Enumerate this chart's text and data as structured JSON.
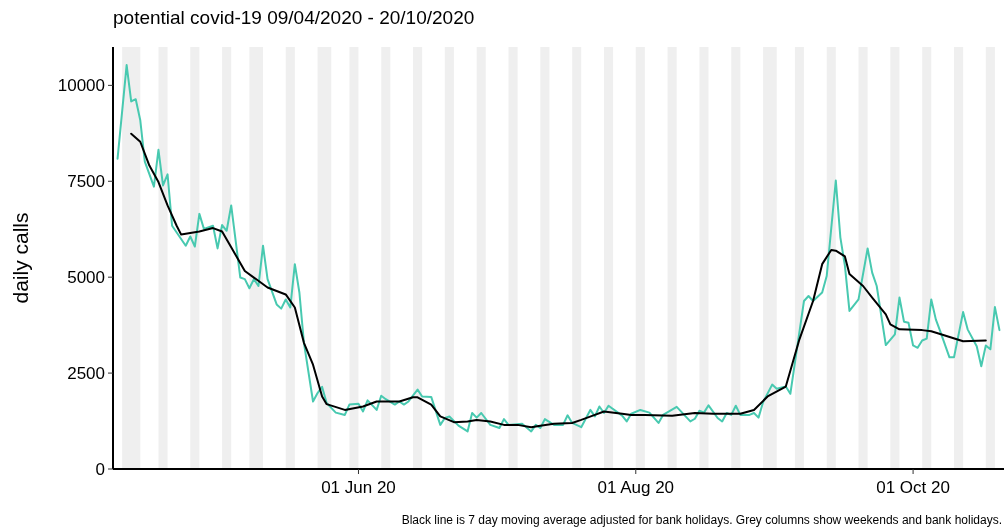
{
  "chart_data": {
    "type": "line",
    "title": "potential covid-19 09/04/2020 - 20/10/2020",
    "ylabel": "daily calls",
    "annotations": [
      "Black line is 7 day moving average adjusted for bank holidays. Grey columns show weekends and bank holidays."
    ],
    "xlim": [
      "2020-04-08",
      "2020-10-21"
    ],
    "ylim": [
      0,
      11000
    ],
    "xticks": [
      {
        "value": "2020-06-01",
        "label": "01 Jun 20"
      },
      {
        "value": "2020-08-01",
        "label": "01 Aug 20"
      },
      {
        "value": "2020-10-01",
        "label": "01 Oct 20"
      }
    ],
    "yticks": [
      0,
      2500,
      5000,
      7500,
      10000
    ],
    "marker": "none",
    "line_style": "solid",
    "bands": [
      {
        "axis": "x",
        "from": "2020-04-10",
        "to": "2020-04-14",
        "color": "#ebebeb"
      },
      {
        "axis": "x",
        "from": "2020-04-18",
        "to": "2020-04-20",
        "color": "#ebebeb"
      },
      {
        "axis": "x",
        "from": "2020-04-25",
        "to": "2020-04-27",
        "color": "#ebebeb"
      },
      {
        "axis": "x",
        "from": "2020-05-02",
        "to": "2020-05-04",
        "color": "#ebebeb"
      },
      {
        "axis": "x",
        "from": "2020-05-08",
        "to": "2020-05-11",
        "color": "#ebebeb"
      },
      {
        "axis": "x",
        "from": "2020-05-16",
        "to": "2020-05-18",
        "color": "#ebebeb"
      },
      {
        "axis": "x",
        "from": "2020-05-23",
        "to": "2020-05-26",
        "color": "#ebebeb"
      },
      {
        "axis": "x",
        "from": "2020-05-30",
        "to": "2020-06-01",
        "color": "#ebebeb"
      },
      {
        "axis": "x",
        "from": "2020-06-06",
        "to": "2020-06-08",
        "color": "#ebebeb"
      },
      {
        "axis": "x",
        "from": "2020-06-13",
        "to": "2020-06-15",
        "color": "#ebebeb"
      },
      {
        "axis": "x",
        "from": "2020-06-20",
        "to": "2020-06-22",
        "color": "#ebebeb"
      },
      {
        "axis": "x",
        "from": "2020-06-27",
        "to": "2020-06-29",
        "color": "#ebebeb"
      },
      {
        "axis": "x",
        "from": "2020-07-04",
        "to": "2020-07-06",
        "color": "#ebebeb"
      },
      {
        "axis": "x",
        "from": "2020-07-11",
        "to": "2020-07-13",
        "color": "#ebebeb"
      },
      {
        "axis": "x",
        "from": "2020-07-18",
        "to": "2020-07-20",
        "color": "#ebebeb"
      },
      {
        "axis": "x",
        "from": "2020-07-25",
        "to": "2020-07-27",
        "color": "#ebebeb"
      },
      {
        "axis": "x",
        "from": "2020-08-01",
        "to": "2020-08-03",
        "color": "#ebebeb"
      },
      {
        "axis": "x",
        "from": "2020-08-08",
        "to": "2020-08-10",
        "color": "#ebebeb"
      },
      {
        "axis": "x",
        "from": "2020-08-15",
        "to": "2020-08-17",
        "color": "#ebebeb"
      },
      {
        "axis": "x",
        "from": "2020-08-22",
        "to": "2020-08-24",
        "color": "#ebebeb"
      },
      {
        "axis": "x",
        "from": "2020-08-29",
        "to": "2020-09-01",
        "color": "#ebebeb"
      },
      {
        "axis": "x",
        "from": "2020-09-05",
        "to": "2020-09-07",
        "color": "#ebebeb"
      },
      {
        "axis": "x",
        "from": "2020-09-12",
        "to": "2020-09-14",
        "color": "#ebebeb"
      },
      {
        "axis": "x",
        "from": "2020-09-19",
        "to": "2020-09-21",
        "color": "#ebebeb"
      },
      {
        "axis": "x",
        "from": "2020-09-26",
        "to": "2020-09-28",
        "color": "#ebebeb"
      },
      {
        "axis": "x",
        "from": "2020-10-03",
        "to": "2020-10-05",
        "color": "#ebebeb"
      },
      {
        "axis": "x",
        "from": "2020-10-10",
        "to": "2020-10-12",
        "color": "#ebebeb"
      },
      {
        "axis": "x",
        "from": "2020-10-17",
        "to": "2020-10-19",
        "color": "#ebebeb"
      }
    ],
    "series": [
      {
        "color": "#48c9b0",
        "x": [
          "2020-04-09",
          "2020-04-11",
          "2020-04-12",
          "2020-04-13",
          "2020-04-14",
          "2020-04-15",
          "2020-04-17",
          "2020-04-18",
          "2020-04-19",
          "2020-04-20",
          "2020-04-21",
          "2020-04-24",
          "2020-04-25",
          "2020-04-26",
          "2020-04-27",
          "2020-04-28",
          "2020-04-30",
          "2020-05-01",
          "2020-05-02",
          "2020-05-03",
          "2020-05-04",
          "2020-05-06",
          "2020-05-07",
          "2020-05-08",
          "2020-05-09",
          "2020-05-10",
          "2020-05-11",
          "2020-05-12",
          "2020-05-14",
          "2020-05-15",
          "2020-05-16",
          "2020-05-17",
          "2020-05-18",
          "2020-05-19",
          "2020-05-20",
          "2020-05-22",
          "2020-05-23",
          "2020-05-24",
          "2020-05-25",
          "2020-05-27",
          "2020-05-29",
          "2020-05-30",
          "2020-06-01",
          "2020-06-02",
          "2020-06-03",
          "2020-06-05",
          "2020-06-06",
          "2020-06-07",
          "2020-06-09",
          "2020-06-10",
          "2020-06-11",
          "2020-06-12",
          "2020-06-14",
          "2020-06-15",
          "2020-06-17",
          "2020-06-19",
          "2020-06-20",
          "2020-06-21",
          "2020-06-23",
          "2020-06-25",
          "2020-06-26",
          "2020-06-27",
          "2020-06-28",
          "2020-06-30",
          "2020-07-02",
          "2020-07-03",
          "2020-07-04",
          "2020-07-07",
          "2020-07-09",
          "2020-07-10",
          "2020-07-11",
          "2020-07-12",
          "2020-07-14",
          "2020-07-16",
          "2020-07-17",
          "2020-07-18",
          "2020-07-20",
          "2020-07-22",
          "2020-07-23",
          "2020-07-24",
          "2020-07-25",
          "2020-07-26",
          "2020-07-29",
          "2020-07-30",
          "2020-07-31",
          "2020-08-02",
          "2020-08-04",
          "2020-08-06",
          "2020-08-07",
          "2020-08-10",
          "2020-08-13",
          "2020-08-14",
          "2020-08-15",
          "2020-08-16",
          "2020-08-17",
          "2020-08-19",
          "2020-08-20",
          "2020-08-21",
          "2020-08-22",
          "2020-08-23",
          "2020-08-24",
          "2020-08-26",
          "2020-08-27",
          "2020-08-28",
          "2020-08-29",
          "2020-08-31",
          "2020-09-01",
          "2020-09-03",
          "2020-09-04",
          "2020-09-07",
          "2020-09-08",
          "2020-09-09",
          "2020-09-11",
          "2020-09-12",
          "2020-09-14",
          "2020-09-15",
          "2020-09-16",
          "2020-09-17",
          "2020-09-19",
          "2020-09-21",
          "2020-09-22",
          "2020-09-23",
          "2020-09-25",
          "2020-09-27",
          "2020-09-28",
          "2020-09-29",
          "2020-09-30",
          "2020-10-01",
          "2020-10-02",
          "2020-10-03",
          "2020-10-04",
          "2020-10-05",
          "2020-10-06",
          "2020-10-07",
          "2020-10-09",
          "2020-10-10",
          "2020-10-12",
          "2020-10-13",
          "2020-10-15",
          "2020-10-16",
          "2020-10-17",
          "2020-10-18",
          "2020-10-19",
          "2020-10-20"
        ],
        "values": [
          8090,
          10530,
          9580,
          9640,
          9090,
          8010,
          7360,
          8320,
          7390,
          7680,
          6340,
          5820,
          6060,
          5800,
          6650,
          6260,
          6340,
          5750,
          6360,
          6210,
          6870,
          4990,
          4950,
          4710,
          4950,
          4770,
          5820,
          4950,
          4290,
          4180,
          4420,
          4210,
          5340,
          4600,
          3290,
          1760,
          1980,
          2140,
          1720,
          1470,
          1410,
          1680,
          1700,
          1500,
          1790,
          1540,
          1910,
          1820,
          1680,
          1760,
          1680,
          1760,
          2070,
          1890,
          1880,
          1150,
          1330,
          1370,
          1130,
          980,
          1460,
          1340,
          1460,
          1150,
          1070,
          1300,
          1150,
          1180,
          980,
          1150,
          1070,
          1300,
          1150,
          1150,
          1400,
          1200,
          1090,
          1540,
          1370,
          1630,
          1460,
          1650,
          1390,
          1240,
          1440,
          1540,
          1470,
          1200,
          1410,
          1620,
          1240,
          1310,
          1520,
          1470,
          1660,
          1330,
          1240,
          1460,
          1410,
          1650,
          1410,
          1410,
          1460,
          1340,
          1740,
          2200,
          2090,
          2150,
          1960,
          4380,
          4510,
          4380,
          4600,
          5030,
          7520,
          6040,
          5300,
          4120,
          4420,
          5750,
          5120,
          4770,
          3230,
          3510,
          4470,
          3840,
          3810,
          3220,
          3160,
          3350,
          3400,
          4420,
          3900,
          3580,
          2910,
          2910,
          4090,
          3640,
          3200,
          2680,
          3220,
          3120,
          4220,
          3620
        ]
      },
      {
        "color": "#000000",
        "x": [
          "2020-04-12",
          "2020-04-14",
          "2020-04-16",
          "2020-04-18",
          "2020-04-20",
          "2020-04-22",
          "2020-04-23",
          "2020-04-27",
          "2020-04-30",
          "2020-05-02",
          "2020-05-04",
          "2020-05-07",
          "2020-05-09",
          "2020-05-12",
          "2020-05-16",
          "2020-05-18",
          "2020-05-20",
          "2020-05-22",
          "2020-05-24",
          "2020-05-25",
          "2020-05-29",
          "2020-06-02",
          "2020-06-05",
          "2020-06-10",
          "2020-06-13",
          "2020-06-14",
          "2020-06-17",
          "2020-06-19",
          "2020-06-22",
          "2020-06-25",
          "2020-06-27",
          "2020-06-30",
          "2020-07-03",
          "2020-07-06",
          "2020-07-09",
          "2020-07-11",
          "2020-07-14",
          "2020-07-18",
          "2020-07-20",
          "2020-07-23",
          "2020-07-25",
          "2020-07-29",
          "2020-07-31",
          "2020-08-03",
          "2020-08-09",
          "2020-08-14",
          "2020-08-18",
          "2020-08-24",
          "2020-08-27",
          "2020-08-30",
          "2020-09-03",
          "2020-09-06",
          "2020-09-09",
          "2020-09-11",
          "2020-09-13",
          "2020-09-14",
          "2020-09-16",
          "2020-09-17",
          "2020-09-20",
          "2020-09-22",
          "2020-09-25",
          "2020-09-26",
          "2020-09-28",
          "2020-10-03",
          "2020-10-05",
          "2020-10-08",
          "2020-10-12",
          "2020-10-17"
        ],
        "values": [
          8740,
          8530,
          7910,
          7480,
          6870,
          6340,
          6110,
          6190,
          6280,
          6190,
          5780,
          5160,
          4990,
          4730,
          4550,
          4210,
          3290,
          2720,
          1890,
          1690,
          1540,
          1630,
          1760,
          1760,
          1870,
          1870,
          1680,
          1370,
          1220,
          1240,
          1280,
          1240,
          1150,
          1150,
          1090,
          1130,
          1180,
          1200,
          1280,
          1410,
          1500,
          1440,
          1410,
          1410,
          1390,
          1460,
          1440,
          1440,
          1540,
          1890,
          2150,
          3380,
          4380,
          5340,
          5710,
          5690,
          5540,
          5080,
          4770,
          4470,
          4030,
          3770,
          3640,
          3620,
          3590,
          3480,
          3330,
          3350
        ]
      }
    ]
  }
}
